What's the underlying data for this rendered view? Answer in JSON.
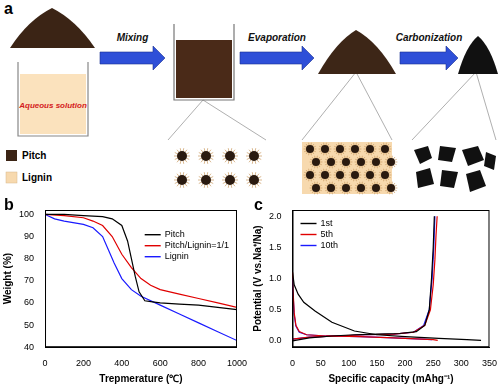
{
  "panel_labels": [
    "a",
    "b",
    "c"
  ],
  "diagram": {
    "steps": [
      "Mixing",
      "Evaporation",
      "Carbonization"
    ],
    "beaker_label": "Aqueous solution",
    "legend": [
      {
        "label": "Pitch",
        "color": "#3b2415"
      },
      {
        "label": "Lignin",
        "color": "#f7d9ae"
      }
    ]
  },
  "chart_data": [
    {
      "type": "line",
      "x_label": "Trepmerature (℃)",
      "y_label": "Weight (%)",
      "xlim": [
        0,
        1000
      ],
      "xticks": [
        0,
        200,
        400,
        600,
        800,
        1000
      ],
      "ylim": [
        40,
        102
      ],
      "yticks": [
        40,
        50,
        60,
        70,
        80,
        90,
        100
      ],
      "grid": false,
      "legend": "upper right",
      "series": [
        {
          "name": "Pitch",
          "color": "#000000",
          "x": [
            0,
            100,
            200,
            300,
            350,
            400,
            430,
            450,
            470,
            490,
            520,
            560,
            600,
            700,
            800,
            900,
            1000
          ],
          "values": [
            100,
            100,
            99.5,
            99,
            98,
            95,
            88,
            80,
            72,
            65,
            61,
            60.5,
            60,
            59.5,
            59,
            58,
            57
          ]
        },
        {
          "name": "Pitch/Lignin=1/1",
          "color": "#e00000",
          "x": [
            0,
            100,
            200,
            250,
            300,
            350,
            400,
            450,
            500,
            550,
            600,
            700,
            800,
            900,
            1000
          ],
          "values": [
            100,
            99.5,
            98.5,
            97,
            95,
            90,
            82,
            76,
            71,
            68,
            66,
            64,
            62,
            60,
            58
          ]
        },
        {
          "name": "Lignin",
          "color": "#1a1aff",
          "x": [
            0,
            50,
            100,
            200,
            250,
            300,
            330,
            360,
            400,
            450,
            500,
            600,
            700,
            800,
            900,
            1000
          ],
          "values": [
            100,
            98,
            97,
            95.5,
            94,
            90,
            84,
            78,
            71,
            66,
            63,
            59,
            55,
            51,
            47,
            43
          ]
        }
      ]
    },
    {
      "type": "line",
      "x_label": "Specific capacity (mAhg⁻¹)",
      "y_label": "Potential (V vs.Na⁺/Na)",
      "xlim": [
        0,
        350
      ],
      "xticks": [
        0,
        50,
        100,
        150,
        200,
        250,
        300,
        350
      ],
      "ylim": [
        -0.1,
        2.1
      ],
      "yticks": [
        {
          "value": 0,
          "label": "0.0"
        },
        0.5,
        {
          "value": 1,
          "label": "1.0"
        },
        1.5,
        {
          "value": 2,
          "label": "2.0"
        }
      ],
      "grid": false,
      "legend": "upper left",
      "series": [
        {
          "name": "1st",
          "color": "#000000",
          "x": [
            0,
            3,
            10,
            20,
            40,
            70,
            110,
            150,
            200,
            260,
            310,
            335,
            null,
            0,
            30,
            70,
            110,
            150,
            190,
            220,
            235,
            243,
            247,
            250,
            252
          ],
          "values": [
            1.1,
            0.9,
            0.75,
            0.62,
            0.48,
            0.3,
            0.16,
            0.1,
            0.07,
            0.04,
            0.02,
            0.01,
            null,
            0.0,
            0.05,
            0.08,
            0.1,
            0.11,
            0.12,
            0.15,
            0.25,
            0.5,
            1.0,
            1.5,
            2.0
          ]
        },
        {
          "name": "5th",
          "color": "#e00000",
          "x": [
            0,
            1,
            3,
            6,
            12,
            25,
            60,
            120,
            180,
            230,
            250,
            258,
            null,
            0,
            30,
            80,
            130,
            180,
            215,
            235,
            245,
            250,
            253,
            255,
            257
          ],
          "values": [
            1.1,
            0.8,
            0.45,
            0.25,
            0.15,
            0.1,
            0.08,
            0.07,
            0.05,
            0.03,
            0.02,
            0.01,
            null,
            0.03,
            0.06,
            0.08,
            0.1,
            0.11,
            0.14,
            0.25,
            0.5,
            0.9,
            1.3,
            1.7,
            2.0
          ]
        },
        {
          "name": "10th",
          "color": "#1a1aff",
          "x": [
            0,
            1,
            3,
            6,
            12,
            25,
            60,
            120,
            180,
            230,
            248,
            null,
            0,
            30,
            80,
            130,
            180,
            215,
            233,
            243,
            248,
            251,
            253
          ],
          "values": [
            1.0,
            0.75,
            0.42,
            0.24,
            0.14,
            0.1,
            0.08,
            0.07,
            0.05,
            0.03,
            0.02,
            null,
            0.03,
            0.06,
            0.08,
            0.1,
            0.11,
            0.14,
            0.25,
            0.5,
            1.0,
            1.5,
            2.0
          ]
        }
      ]
    }
  ]
}
